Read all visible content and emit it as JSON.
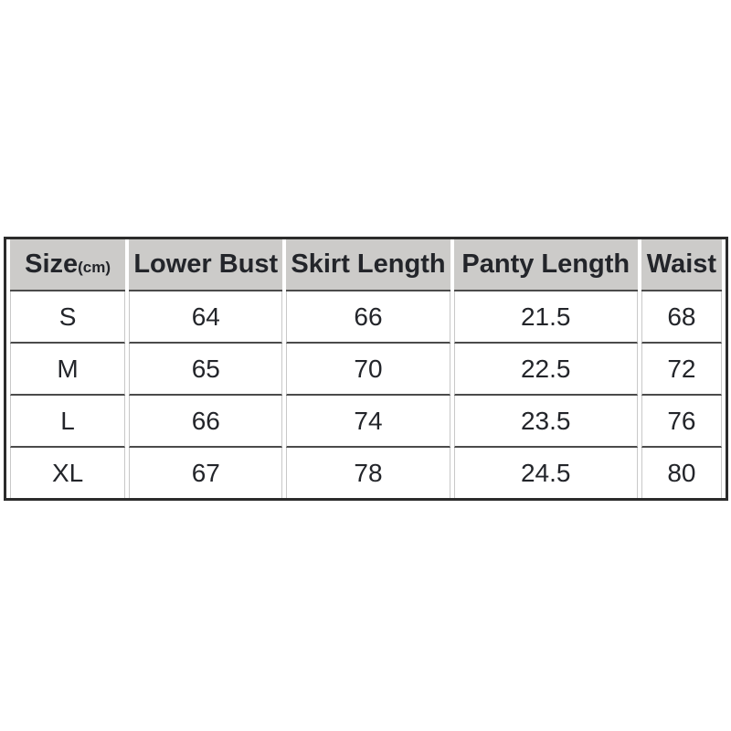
{
  "size_chart": {
    "header": {
      "size_label": "Size",
      "size_unit": "(cm)",
      "columns": [
        "Lower Bust",
        "Skirt Length",
        "Panty Length",
        "Waist"
      ]
    },
    "rows": [
      [
        "S",
        "64",
        "66",
        "21.5",
        "68"
      ],
      [
        "M",
        "65",
        "70",
        "22.5",
        "72"
      ],
      [
        "L",
        "66",
        "74",
        "23.5",
        "76"
      ],
      [
        "XL",
        "67",
        "78",
        "24.5",
        "80"
      ]
    ]
  },
  "colors": {
    "page_bg": "#ffffff",
    "header_bg": "#cccbc9",
    "outer_border": "#2b2b2b",
    "row_line": "#4b4b4b",
    "column_line": "#c8c8c8",
    "text": "#23252a"
  }
}
